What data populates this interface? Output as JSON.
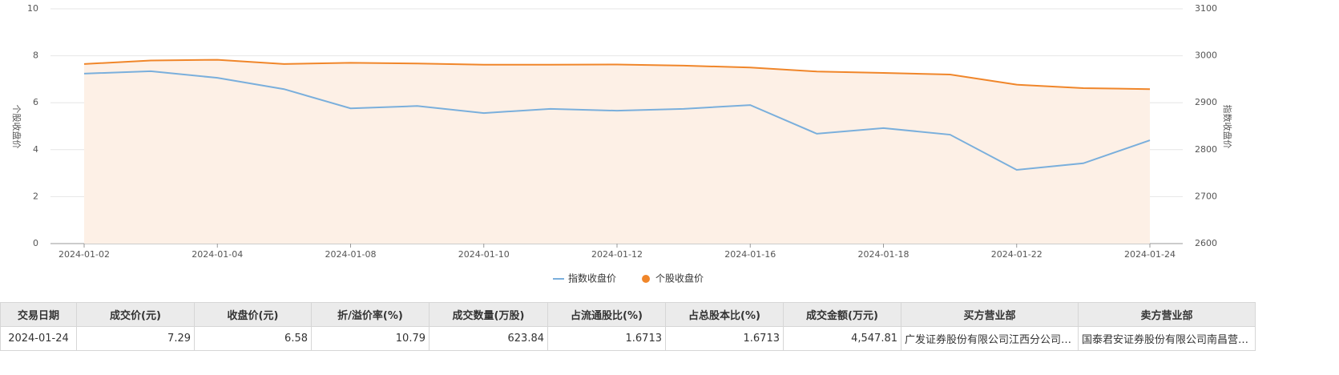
{
  "chart_data": {
    "type": "line",
    "y_label": "个股收盘价",
    "y2_label": "指数收盘价",
    "categories": [
      "2024-01-02",
      null,
      "2024-01-04",
      null,
      "2024-01-08",
      null,
      "2024-01-10",
      null,
      "2024-01-12",
      null,
      "2024-01-16",
      null,
      "2024-01-18",
      null,
      "2024-01-22",
      null,
      "2024-01-24"
    ],
    "series": [
      {
        "name": "指数收盘价",
        "color": "#7aafdc",
        "axis": "y2",
        "values": [
          2962,
          2967,
          2953,
          2929,
          2888,
          2893,
          2878,
          2887,
          2883,
          2887,
          2895,
          2834,
          2846,
          2832,
          2757,
          2771,
          2820
        ]
      },
      {
        "name": "个股收盘价",
        "color": "#f0862a",
        "area": "#fdf0e6",
        "values": [
          7.65,
          7.8,
          7.83,
          7.65,
          7.7,
          7.67,
          7.62,
          7.62,
          7.63,
          7.58,
          7.5,
          7.33,
          7.27,
          7.2,
          6.77,
          6.62,
          6.58
        ]
      }
    ],
    "ylim": [
      0,
      10
    ],
    "yticks": [
      0,
      2,
      4,
      6,
      8,
      10
    ],
    "y2lim": [
      2600,
      3100
    ],
    "y2ticks": [
      2600,
      2700,
      2800,
      2900,
      3000,
      3100
    ],
    "grid": true,
    "legend": "bottom"
  },
  "table": {
    "headers": [
      "交易日期",
      "成交价(元)",
      "收盘价(元)",
      "折/溢价率(%)",
      "成交数量(万股)",
      "占流通股比(%)",
      "占总股本比(%)",
      "成交金额(万元)",
      "买方营业部",
      "卖方营业部"
    ],
    "rows": [
      [
        "2024-01-24",
        "7.29",
        "6.58",
        "10.79",
        "623.84",
        "1.6713",
        "1.6713",
        "4,547.81",
        "广发证券股份有限公司江西分公司南昌营业部",
        "国泰君安证券股份有限公司南昌营业部"
      ]
    ]
  }
}
